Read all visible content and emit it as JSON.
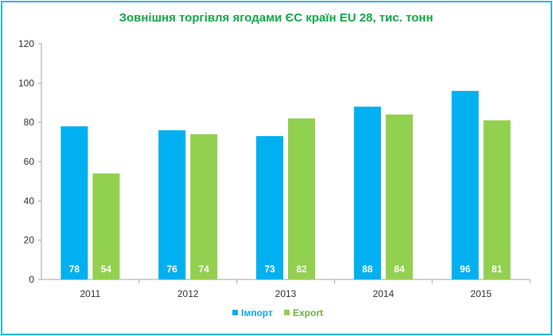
{
  "chart_data": {
    "type": "bar",
    "title": "Зовнішня торгівля ягодами ЄС країн EU 28, тис. тонн",
    "categories": [
      "2011",
      "2012",
      "2013",
      "2014",
      "2015"
    ],
    "series": [
      {
        "name": "Імпорт",
        "color": "#00b0f0",
        "values": [
          78,
          76,
          73,
          88,
          96
        ],
        "labels": [
          "78",
          "76",
          "73",
          "88",
          "96"
        ]
      },
      {
        "name": "Export",
        "color": "#92d050",
        "values": [
          54,
          74,
          82,
          84,
          81
        ],
        "labels": [
          "54",
          "74",
          "82",
          "84",
          "81"
        ]
      }
    ],
    "ylim": [
      0,
      120
    ],
    "yticks": [
      "0",
      "20",
      "40",
      "60",
      "80",
      "100",
      "120"
    ],
    "grid": false,
    "legend": "bottom-center",
    "legend_colors": {
      "import_text": "#00b0f0",
      "export_text": "#70ad47"
    }
  }
}
